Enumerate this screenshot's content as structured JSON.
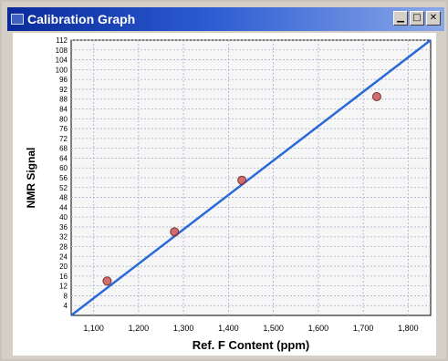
{
  "window": {
    "title": "Calibration Graph",
    "controls": {
      "minimize": "▁",
      "maximize": "□",
      "close": "✕"
    }
  },
  "chart_data": {
    "type": "scatter",
    "title": "",
    "xlabel": "Ref. F Content (ppm)",
    "ylabel": "NMR Signal",
    "xlim": [
      1050,
      1850
    ],
    "ylim": [
      0,
      112
    ],
    "x_ticks": [
      {
        "value": 1100,
        "label": "1,100"
      },
      {
        "value": 1200,
        "label": "1,200"
      },
      {
        "value": 1300,
        "label": "1,300"
      },
      {
        "value": 1400,
        "label": "1,400"
      },
      {
        "value": 1500,
        "label": "1,500"
      },
      {
        "value": 1600,
        "label": "1,600"
      },
      {
        "value": 1700,
        "label": "1,700"
      },
      {
        "value": 1800,
        "label": "1,800"
      }
    ],
    "y_ticks": [
      {
        "value": 112,
        "label": "112"
      },
      {
        "value": 108,
        "label": "108"
      },
      {
        "value": 104,
        "label": "104"
      },
      {
        "value": 100,
        "label": "100"
      },
      {
        "value": 96,
        "label": "96"
      },
      {
        "value": 92,
        "label": "92"
      },
      {
        "value": 88,
        "label": "88"
      },
      {
        "value": 84,
        "label": "84"
      },
      {
        "value": 80,
        "label": "80"
      },
      {
        "value": 76,
        "label": "76"
      },
      {
        "value": 72,
        "label": "72"
      },
      {
        "value": 68,
        "label": "68"
      },
      {
        "value": 64,
        "label": "64"
      },
      {
        "value": 60,
        "label": "60"
      },
      {
        "value": 56,
        "label": "56"
      },
      {
        "value": 52,
        "label": "52"
      },
      {
        "value": 48,
        "label": "48"
      },
      {
        "value": 44,
        "label": "44"
      },
      {
        "value": 40,
        "label": "40"
      },
      {
        "value": 36,
        "label": "36"
      },
      {
        "value": 32,
        "label": "32"
      },
      {
        "value": 28,
        "label": "28"
      },
      {
        "value": 24,
        "label": "24"
      },
      {
        "value": 20,
        "label": "20"
      },
      {
        "value": 16,
        "label": "16"
      },
      {
        "value": 12,
        "label": "12"
      },
      {
        "value": 8,
        "label": "8"
      },
      {
        "value": 4,
        "label": "4"
      }
    ],
    "series": [
      {
        "points": [
          [
            1130,
            14
          ],
          [
            1280,
            34
          ],
          [
            1430,
            55
          ],
          [
            1730,
            89
          ]
        ]
      }
    ],
    "fit_line": {
      "x": [
        1050,
        1850
      ],
      "y": [
        0,
        112
      ],
      "color": "#2a6ad8"
    },
    "point_color": "#c04040",
    "grid": true
  }
}
